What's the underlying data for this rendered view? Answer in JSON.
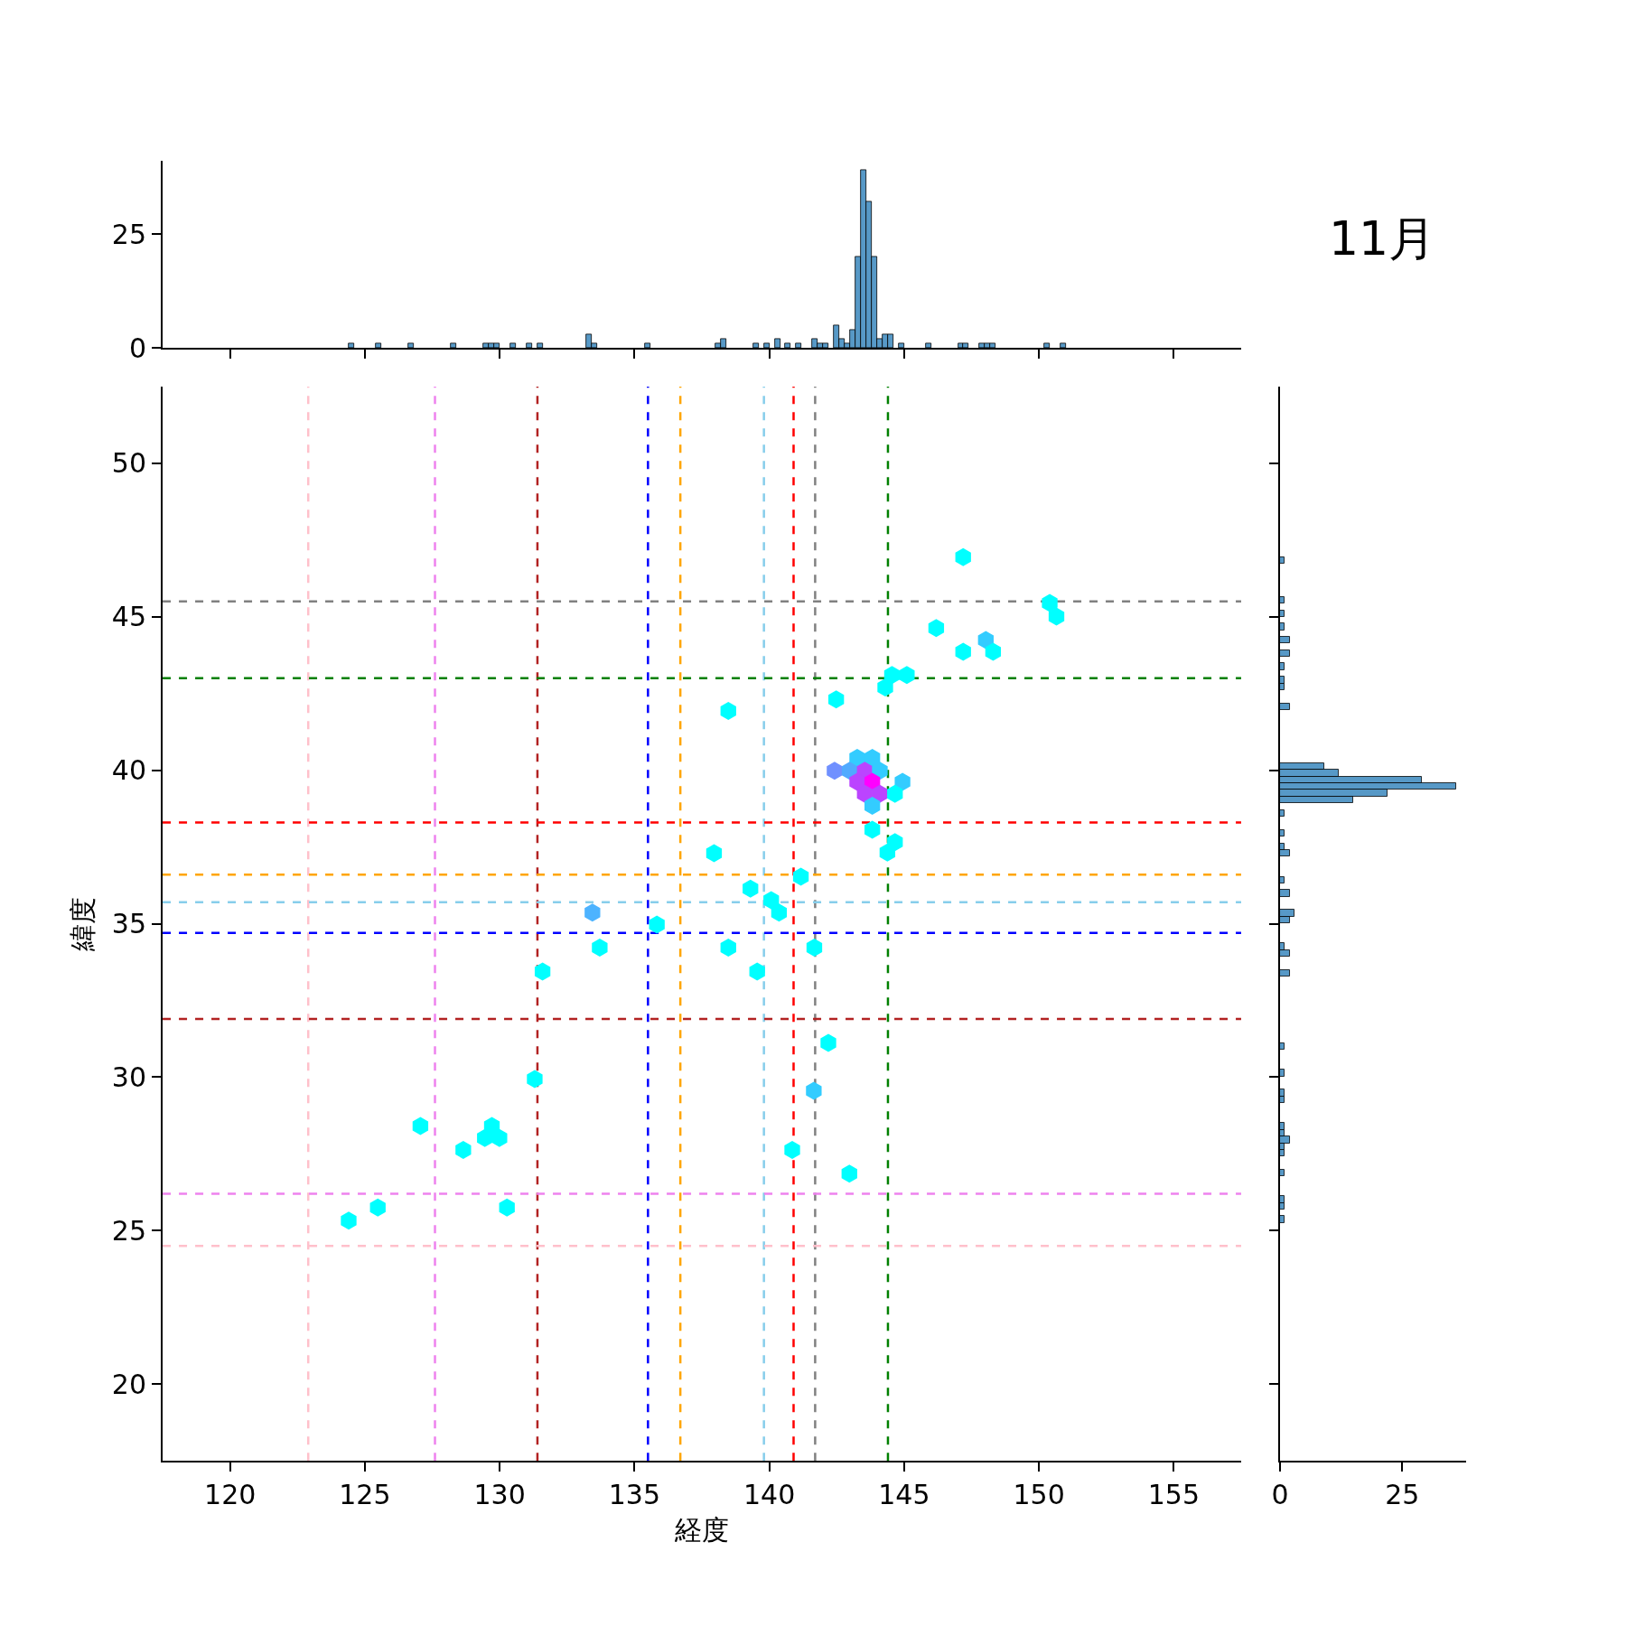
{
  "chart_data": [
    {
      "type": "histogram",
      "color": "#5799c7",
      "bins": [
        124.4,
        124.6,
        124.8,
        125.0,
        125.2,
        125.4,
        125.6,
        125.8,
        126.0,
        126.2,
        126.4,
        126.6,
        126.8,
        127.0,
        127.2,
        127.4,
        127.6,
        127.8,
        128.0,
        128.2,
        128.4,
        128.6,
        128.8,
        129.0,
        129.2,
        129.4,
        129.6,
        129.8,
        130.0,
        130.2,
        130.4,
        130.6,
        130.8,
        131.0,
        131.2,
        131.4,
        131.6,
        131.8,
        132.0,
        132.2,
        132.4,
        132.6,
        132.8,
        133.0,
        133.2,
        133.4,
        133.6,
        133.8,
        134.0,
        134.2,
        134.4,
        134.6,
        134.8,
        135.0,
        135.2,
        135.4,
        135.6,
        135.8,
        136.0,
        136.2,
        136.4,
        136.6,
        136.8,
        137.0,
        137.2,
        137.4,
        137.6,
        137.8,
        138.0,
        138.2,
        138.4,
        138.6,
        138.8,
        139.0,
        139.2,
        139.4,
        139.6,
        139.8,
        140.0,
        140.2,
        140.4,
        140.6,
        140.8,
        141.0,
        141.2,
        141.4,
        141.6,
        141.8,
        142.0,
        142.2,
        142.4,
        142.6,
        142.8,
        143.0,
        143.2,
        143.4,
        143.6,
        143.8,
        144.0,
        144.2,
        144.4,
        144.6,
        144.8,
        145.0,
        145.2,
        145.4,
        145.6,
        145.8,
        146.0,
        146.2,
        146.4,
        146.6,
        146.8,
        147.0,
        147.2,
        147.4,
        147.6,
        147.8,
        148.0,
        148.2,
        148.4,
        148.6,
        148.8,
        149.0,
        149.2,
        149.4,
        149.6,
        149.8,
        150.0,
        150.2,
        150.4,
        150.6,
        150.8,
        151.0
      ],
      "values": [
        1,
        0,
        0,
        0,
        0,
        1,
        0,
        0,
        0,
        0,
        0,
        1,
        0,
        0,
        0,
        0,
        0,
        0,
        0,
        1,
        0,
        0,
        0,
        0,
        0,
        1,
        1,
        1,
        0,
        0,
        1,
        0,
        0,
        1,
        0,
        1,
        0,
        0,
        0,
        0,
        0,
        0,
        0,
        0,
        3,
        1,
        0,
        0,
        0,
        0,
        0,
        0,
        0,
        0,
        0,
        1,
        0,
        0,
        0,
        0,
        0,
        0,
        0,
        0,
        0,
        0,
        0,
        0,
        1,
        2,
        0,
        0,
        0,
        0,
        0,
        1,
        0,
        1,
        0,
        2,
        0,
        1,
        0,
        1,
        0,
        0,
        2,
        1,
        1,
        0,
        5,
        2,
        1,
        4,
        20,
        39,
        32,
        20,
        2,
        3,
        3,
        0,
        1,
        0,
        0,
        0,
        0,
        1,
        0,
        0,
        0,
        0,
        0,
        1,
        1,
        0,
        0,
        1,
        1,
        1,
        0,
        0,
        0,
        0,
        0,
        0,
        0,
        0,
        0,
        1,
        0,
        0,
        1
      ],
      "xlim": [
        117.5,
        157.5
      ],
      "xticks": [
        120,
        125,
        130,
        135,
        140,
        145,
        150,
        155
      ],
      "ylim": [
        0,
        41
      ],
      "yticks": [
        0,
        25
      ],
      "tick_labels": "y",
      "grid": false
    },
    {
      "type": "scatter",
      "xlabel": "経度",
      "ylabel": "緯度",
      "grid": false,
      "x": [
        147.19,
        150.4,
        150.65,
        146.19,
        148.03,
        147.19,
        148.3,
        144.55,
        145.1,
        144.3,
        142.48,
        138.48,
        143.26,
        143.82,
        142.42,
        142.98,
        143.54,
        144.1,
        143.26,
        143.82,
        144.94,
        143.54,
        144.1,
        144.66,
        143.82,
        143.82,
        144.66,
        144.38,
        137.95,
        139.3,
        141.17,
        140.07,
        140.36,
        133.44,
        135.83,
        133.71,
        138.48,
        141.67,
        131.59,
        139.55,
        131.3,
        142.19,
        141.65,
        127.06,
        129.71,
        129.45,
        129.99,
        128.65,
        140.85,
        142.97,
        125.48,
        130.27,
        124.4
      ],
      "values": [
        46.94,
        45.45,
        45.01,
        44.63,
        44.24,
        43.86,
        43.86,
        43.1,
        43.1,
        42.7,
        42.31,
        41.93,
        40.4,
        40.4,
        39.98,
        39.98,
        39.98,
        39.98,
        39.62,
        39.62,
        39.62,
        39.23,
        39.23,
        39.23,
        38.84,
        38.06,
        37.66,
        37.32,
        37.3,
        36.14,
        36.53,
        35.77,
        35.36,
        35.36,
        34.97,
        34.22,
        34.22,
        34.22,
        33.44,
        33.44,
        29.94,
        31.12,
        29.56,
        28.41,
        28.41,
        28.02,
        28.02,
        27.63,
        27.63,
        26.86,
        25.75,
        25.75,
        25.33
      ],
      "colors": [
        "#00ffff",
        "#00ffff",
        "#00ffff",
        "#00ffff",
        "#33ccff",
        "#00ffff",
        "#00ffff",
        "#00ffff",
        "#00ffff",
        "#00ffff",
        "#00ffff",
        "#00ffff",
        "#33ccff",
        "#33ccff",
        "#7090ff",
        "#50aaff",
        "#bb44ff",
        "#33ccff",
        "#bb44ff",
        "#ff00ff",
        "#33ccff",
        "#bb44ff",
        "#bb44ff",
        "#00ffff",
        "#33ccff",
        "#00ffff",
        "#00ffff",
        "#00ffff",
        "#00ffff",
        "#00ffff",
        "#00ffff",
        "#00ffff",
        "#00ffff",
        "#4db3ff",
        "#00ffff",
        "#00ffff",
        "#00ffff",
        "#00ffff",
        "#00ffff",
        "#00ffff",
        "#00ffff",
        "#00ffff",
        "#33ccff",
        "#00ffff",
        "#00ffff",
        "#00ffff",
        "#00ffff",
        "#00ffff",
        "#00ffff",
        "#00ffff",
        "#00ffff",
        "#00ffff",
        "#00ffff"
      ],
      "xlim": [
        117.5,
        157.5
      ],
      "xticks": [
        120,
        125,
        130,
        135,
        140,
        145,
        150,
        155
      ],
      "ylim": [
        17.5,
        52.5
      ],
      "yticks": [
        20,
        25,
        30,
        35,
        40,
        45,
        50
      ],
      "ref_lines": [
        {
          "axis": "x",
          "value": 122.9,
          "color": "#ffc0cb",
          "line_style": "dashed"
        },
        {
          "axis": "x",
          "value": 127.6,
          "color": "#ee82ee",
          "line_style": "dashed"
        },
        {
          "axis": "x",
          "value": 131.4,
          "color": "#b22222",
          "line_style": "dashed"
        },
        {
          "axis": "x",
          "value": 135.5,
          "color": "#0000ff",
          "line_style": "dashed"
        },
        {
          "axis": "x",
          "value": 136.7,
          "color": "#ffa500",
          "line_style": "dashed"
        },
        {
          "axis": "x",
          "value": 139.8,
          "color": "#87ceeb",
          "line_style": "dashed"
        },
        {
          "axis": "x",
          "value": 140.9,
          "color": "#ff0000",
          "line_style": "dashed"
        },
        {
          "axis": "x",
          "value": 141.7,
          "color": "#808080",
          "line_style": "dashed"
        },
        {
          "axis": "x",
          "value": 144.4,
          "color": "#008000",
          "line_style": "dashed"
        },
        {
          "axis": "y",
          "value": 45.5,
          "color": "#808080",
          "line_style": "dashed"
        },
        {
          "axis": "y",
          "value": 43.0,
          "color": "#008000",
          "line_style": "dashed"
        },
        {
          "axis": "y",
          "value": 38.3,
          "color": "#ff0000",
          "line_style": "dashed"
        },
        {
          "axis": "y",
          "value": 36.6,
          "color": "#ffa500",
          "line_style": "dashed"
        },
        {
          "axis": "y",
          "value": 35.7,
          "color": "#87ceeb",
          "line_style": "dashed"
        },
        {
          "axis": "y",
          "value": 34.7,
          "color": "#0000ff",
          "line_style": "dashed"
        },
        {
          "axis": "y",
          "value": 31.9,
          "color": "#b22222",
          "line_style": "dashed"
        },
        {
          "axis": "y",
          "value": 26.2,
          "color": "#ee82ee",
          "line_style": "dashed"
        },
        {
          "axis": "y",
          "value": 24.5,
          "color": "#ffc0cb",
          "line_style": "dashed"
        }
      ]
    },
    {
      "type": "histogram",
      "orientation": "horizontal",
      "title": "11月",
      "color": "#5799c7",
      "bins": [
        25.25,
        25.47,
        25.68,
        25.9,
        26.12,
        26.34,
        26.55,
        26.77,
        26.99,
        27.2,
        27.42,
        27.64,
        27.85,
        28.07,
        28.29,
        28.51,
        28.72,
        28.94,
        29.16,
        29.37,
        29.59,
        29.81,
        30.02,
        30.24,
        30.46,
        30.68,
        30.89,
        31.11,
        31.33,
        31.54,
        31.76,
        31.98,
        32.19,
        32.41,
        32.63,
        32.85,
        33.06,
        33.28,
        33.5,
        33.71,
        33.93,
        34.15,
        34.36,
        34.58,
        34.8,
        35.02,
        35.23,
        35.45,
        35.67,
        35.88,
        36.1,
        36.32,
        36.53,
        36.75,
        36.97,
        37.19,
        37.4,
        37.62,
        37.84,
        38.05,
        38.27,
        38.49,
        38.7,
        38.92,
        39.14,
        39.36,
        39.57,
        39.79,
        40.01,
        40.22,
        40.44,
        40.66,
        40.87,
        41.09,
        41.31,
        41.53,
        41.74,
        41.96,
        42.18,
        42.39,
        42.61,
        42.83,
        43.04,
        43.26,
        43.48,
        43.7,
        43.91,
        44.13,
        44.35,
        44.56,
        44.78,
        45.0,
        45.21,
        45.43,
        45.65,
        45.87,
        46.08,
        46.3,
        46.52,
        46.73,
        46.95
      ],
      "values": [
        1,
        0,
        1,
        1,
        0,
        0,
        0,
        1,
        0,
        0,
        1,
        1,
        2,
        1,
        1,
        0,
        0,
        0,
        1,
        1,
        0,
        0,
        1,
        0,
        0,
        0,
        1,
        0,
        0,
        0,
        0,
        0,
        0,
        0,
        0,
        0,
        0,
        2,
        0,
        0,
        2,
        1,
        0,
        0,
        0,
        2,
        3,
        0,
        0,
        2,
        0,
        1,
        0,
        0,
        0,
        2,
        1,
        0,
        1,
        0,
        0,
        1,
        0,
        15,
        22,
        36,
        29,
        12,
        9,
        0,
        0,
        0,
        0,
        0,
        0,
        0,
        0,
        2,
        0,
        0,
        1,
        1,
        0,
        1,
        0,
        2,
        0,
        2,
        0,
        1,
        0,
        1,
        0,
        1,
        0,
        0,
        0,
        0,
        0,
        1
      ],
      "xlim": [
        0,
        38
      ],
      "xticks": [
        0,
        25
      ],
      "ylim": [
        17.5,
        52.5
      ],
      "yticks": [
        20,
        25,
        30,
        35,
        40,
        45,
        50
      ],
      "tick_labels": "x",
      "grid": false
    }
  ]
}
